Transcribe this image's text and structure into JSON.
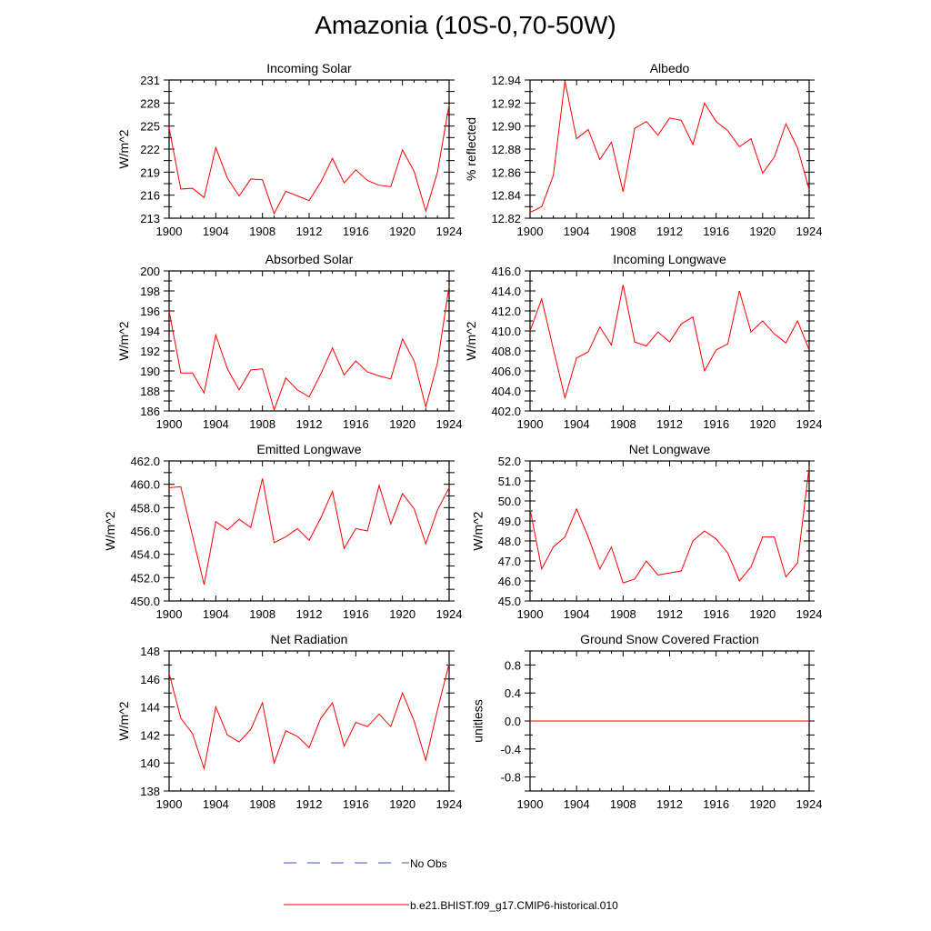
{
  "title": "Amazonia (10S-0,70-50W)",
  "colors": {
    "model": "#ff0000",
    "obs": "#3b4fc4",
    "axis": "#000000"
  },
  "legend": {
    "obs_label": "No Obs",
    "model_label": "b.e21.BHIST.f09_g17.CMIP6-historical.010"
  },
  "chart_data": [
    {
      "type": "line",
      "title": "Incoming Solar",
      "ylabel": "W/m^2",
      "xlim": [
        1900,
        1924
      ],
      "ylim": [
        213,
        231
      ],
      "xticks": [
        "1900",
        "1904",
        "1908",
        "1912",
        "1916",
        "1920",
        "1924"
      ],
      "yticks": [
        "213",
        "216",
        "219",
        "222",
        "225",
        "228",
        "231"
      ],
      "x": [
        1900,
        1901,
        1902,
        1903,
        1904,
        1905,
        1906,
        1907,
        1908,
        1909,
        1910,
        1911,
        1912,
        1913,
        1914,
        1915,
        1916,
        1917,
        1918,
        1919,
        1920,
        1921,
        1922,
        1923,
        1924
      ],
      "series": [
        {
          "name": "b.e21.BHIST.f09_g17.CMIP6-historical.010",
          "values": [
            224.8,
            216.8,
            216.9,
            215.7,
            222.2,
            218.2,
            215.9,
            218.1,
            218.0,
            213.6,
            216.5,
            215.9,
            215.3,
            217.7,
            220.8,
            217.6,
            219.3,
            217.9,
            217.3,
            217.1,
            221.9,
            219.1,
            213.9,
            219.0,
            227.8
          ]
        }
      ]
    },
    {
      "type": "line",
      "title": "Albedo",
      "ylabel": "% reflected",
      "xlim": [
        1900,
        1924
      ],
      "ylim": [
        12.82,
        12.94
      ],
      "xticks": [
        "1900",
        "1904",
        "1908",
        "1912",
        "1916",
        "1920",
        "1924"
      ],
      "yticks": [
        "12.82",
        "12.84",
        "12.86",
        "12.88",
        "12.90",
        "12.92",
        "12.94"
      ],
      "x": [
        1900,
        1901,
        1902,
        1903,
        1904,
        1905,
        1906,
        1907,
        1908,
        1909,
        1910,
        1911,
        1912,
        1913,
        1914,
        1915,
        1916,
        1917,
        1918,
        1919,
        1920,
        1921,
        1922,
        1923,
        1924
      ],
      "series": [
        {
          "name": "b.e21.BHIST.f09_g17.CMIP6-historical.010",
          "values": [
            12.825,
            12.83,
            12.857,
            12.939,
            12.889,
            12.897,
            12.871,
            12.886,
            12.843,
            12.898,
            12.904,
            12.892,
            12.907,
            12.905,
            12.884,
            12.92,
            12.904,
            12.896,
            12.882,
            12.889,
            12.859,
            12.873,
            12.902,
            12.881,
            12.845
          ]
        }
      ]
    },
    {
      "type": "line",
      "title": "Absorbed Solar",
      "ylabel": "W/m^2",
      "xlim": [
        1900,
        1924
      ],
      "ylim": [
        186,
        200
      ],
      "xticks": [
        "1900",
        "1904",
        "1908",
        "1912",
        "1916",
        "1920",
        "1924"
      ],
      "yticks": [
        "186",
        "188",
        "190",
        "192",
        "194",
        "196",
        "198",
        "200"
      ],
      "x": [
        1900,
        1901,
        1902,
        1903,
        1904,
        1905,
        1906,
        1907,
        1908,
        1909,
        1910,
        1911,
        1912,
        1913,
        1914,
        1915,
        1916,
        1917,
        1918,
        1919,
        1920,
        1921,
        1922,
        1923,
        1924
      ],
      "series": [
        {
          "name": "b.e21.BHIST.f09_g17.CMIP6-historical.010",
          "values": [
            196.0,
            189.8,
            189.8,
            187.8,
            193.6,
            190.2,
            188.1,
            190.1,
            190.2,
            186.1,
            189.3,
            188.1,
            187.4,
            189.7,
            192.3,
            189.6,
            191.0,
            189.9,
            189.5,
            189.2,
            193.2,
            191.0,
            186.4,
            190.8,
            198.5
          ]
        }
      ]
    },
    {
      "type": "line",
      "title": "Incoming Longwave",
      "ylabel": "W/m^2",
      "xlim": [
        1900,
        1924
      ],
      "ylim": [
        402,
        416
      ],
      "xticks": [
        "1900",
        "1904",
        "1908",
        "1912",
        "1916",
        "1920",
        "1924"
      ],
      "yticks": [
        "402.0",
        "404.0",
        "406.0",
        "408.0",
        "410.0",
        "412.0",
        "414.0",
        "416.0"
      ],
      "x": [
        1900,
        1901,
        1902,
        1903,
        1904,
        1905,
        1906,
        1907,
        1908,
        1909,
        1910,
        1911,
        1912,
        1913,
        1914,
        1915,
        1916,
        1917,
        1918,
        1919,
        1920,
        1921,
        1922,
        1923,
        1924
      ],
      "series": [
        {
          "name": "b.e21.BHIST.f09_g17.CMIP6-historical.010",
          "values": [
            410.0,
            413.2,
            408.2,
            403.3,
            407.3,
            407.9,
            410.4,
            408.6,
            414.6,
            408.9,
            408.5,
            409.9,
            408.9,
            410.7,
            411.4,
            406.0,
            408.1,
            408.7,
            414.0,
            409.9,
            411.0,
            409.7,
            408.8,
            411.0,
            408.1
          ]
        }
      ]
    },
    {
      "type": "line",
      "title": "Emitted Longwave",
      "ylabel": "W/m^2",
      "xlim": [
        1900,
        1924
      ],
      "ylim": [
        450,
        462
      ],
      "xticks": [
        "1900",
        "1904",
        "1908",
        "1912",
        "1916",
        "1920",
        "1924"
      ],
      "yticks": [
        "450.0",
        "452.0",
        "454.0",
        "456.0",
        "458.0",
        "460.0",
        "462.0"
      ],
      "x": [
        1900,
        1901,
        1902,
        1903,
        1904,
        1905,
        1906,
        1907,
        1908,
        1909,
        1910,
        1911,
        1912,
        1913,
        1914,
        1915,
        1916,
        1917,
        1918,
        1919,
        1920,
        1921,
        1922,
        1923,
        1924
      ],
      "series": [
        {
          "name": "b.e21.BHIST.f09_g17.CMIP6-historical.010",
          "values": [
            459.7,
            459.8,
            455.6,
            451.4,
            456.8,
            456.1,
            457.0,
            456.3,
            460.5,
            455.0,
            455.5,
            456.2,
            455.2,
            457.1,
            459.4,
            454.5,
            456.2,
            456.0,
            459.9,
            456.6,
            459.2,
            457.9,
            454.9,
            457.8,
            459.7
          ]
        }
      ]
    },
    {
      "type": "line",
      "title": "Net Longwave",
      "ylabel": "W/m^2",
      "xlim": [
        1900,
        1924
      ],
      "ylim": [
        45,
        52
      ],
      "xticks": [
        "1900",
        "1904",
        "1908",
        "1912",
        "1916",
        "1920",
        "1924"
      ],
      "yticks": [
        "45.0",
        "46.0",
        "47.0",
        "48.0",
        "49.0",
        "50.0",
        "51.0",
        "52.0"
      ],
      "x": [
        1900,
        1901,
        1902,
        1903,
        1904,
        1905,
        1906,
        1907,
        1908,
        1909,
        1910,
        1911,
        1912,
        1913,
        1914,
        1915,
        1916,
        1917,
        1918,
        1919,
        1920,
        1921,
        1922,
        1923,
        1924
      ],
      "series": [
        {
          "name": "b.e21.BHIST.f09_g17.CMIP6-historical.010",
          "values": [
            49.6,
            46.6,
            47.7,
            48.2,
            49.6,
            48.2,
            46.6,
            47.7,
            45.9,
            46.1,
            47.0,
            46.3,
            46.4,
            46.5,
            48.0,
            48.5,
            48.1,
            47.4,
            46.0,
            46.7,
            48.2,
            48.2,
            46.2,
            46.9,
            51.7
          ]
        }
      ]
    },
    {
      "type": "line",
      "title": "Net Radiation",
      "ylabel": "W/m^2",
      "xlim": [
        1900,
        1924
      ],
      "ylim": [
        138,
        148
      ],
      "xticks": [
        "1900",
        "1904",
        "1908",
        "1912",
        "1916",
        "1920",
        "1924"
      ],
      "yticks": [
        "138",
        "140",
        "142",
        "144",
        "146",
        "148"
      ],
      "x": [
        1900,
        1901,
        1902,
        1903,
        1904,
        1905,
        1906,
        1907,
        1908,
        1909,
        1910,
        1911,
        1912,
        1913,
        1914,
        1915,
        1916,
        1917,
        1918,
        1919,
        1920,
        1921,
        1922,
        1923,
        1924
      ],
      "series": [
        {
          "name": "b.e21.BHIST.f09_g17.CMIP6-historical.010",
          "values": [
            146.4,
            143.2,
            142.1,
            139.6,
            144.0,
            142.0,
            141.5,
            142.4,
            144.3,
            140.0,
            142.3,
            141.9,
            141.1,
            143.2,
            144.3,
            141.2,
            142.9,
            142.6,
            143.5,
            142.6,
            145.0,
            143.0,
            140.2,
            143.8,
            147.1
          ]
        }
      ]
    },
    {
      "type": "line",
      "title": "Ground Snow Covered Fraction",
      "ylabel": "unitless",
      "xlim": [
        1900,
        1924
      ],
      "ylim": [
        -1.0,
        1.0
      ],
      "xticks": [
        "1900",
        "1904",
        "1908",
        "1912",
        "1916",
        "1920",
        "1924"
      ],
      "yticks": [
        "-0.8",
        "-0.4",
        "0.0",
        "0.4",
        "0.8"
      ],
      "x": [
        1900,
        1901,
        1902,
        1903,
        1904,
        1905,
        1906,
        1907,
        1908,
        1909,
        1910,
        1911,
        1912,
        1913,
        1914,
        1915,
        1916,
        1917,
        1918,
        1919,
        1920,
        1921,
        1922,
        1923,
        1924
      ],
      "series": [
        {
          "name": "b.e21.BHIST.f09_g17.CMIP6-historical.010",
          "values": [
            0,
            0,
            0,
            0,
            0,
            0,
            0,
            0,
            0,
            0,
            0,
            0,
            0,
            0,
            0,
            0,
            0,
            0,
            0,
            0,
            0,
            0,
            0,
            0,
            0
          ]
        }
      ]
    }
  ]
}
